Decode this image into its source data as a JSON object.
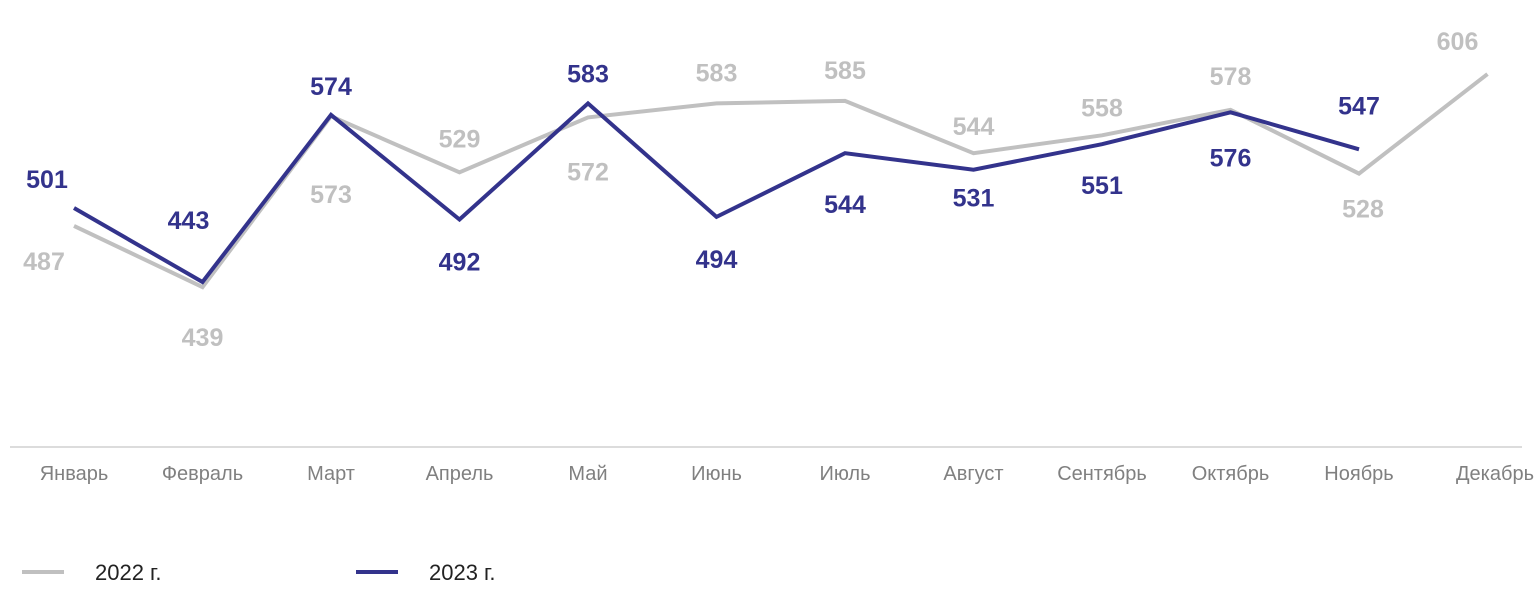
{
  "chart_data": {
    "type": "line",
    "categories": [
      "Январь",
      "Февраль",
      "Март",
      "Апрель",
      "Май",
      "Июнь",
      "Июль",
      "Август",
      "Сентябрь",
      "Октябрь",
      "Ноябрь",
      "Декабрь"
    ],
    "series": [
      {
        "name": "2022 г.",
        "color": "#c0c0c0",
        "values": [
          487,
          439,
          573,
          529,
          572,
          583,
          585,
          544,
          558,
          578,
          528,
          606
        ]
      },
      {
        "name": "2023 г.",
        "color": "#33338c",
        "values": [
          501,
          443,
          574,
          492,
          583,
          494,
          544,
          531,
          551,
          576,
          547,
          null
        ]
      }
    ],
    "data_labels": true,
    "grid": false,
    "legend_position": "bottom-left"
  }
}
